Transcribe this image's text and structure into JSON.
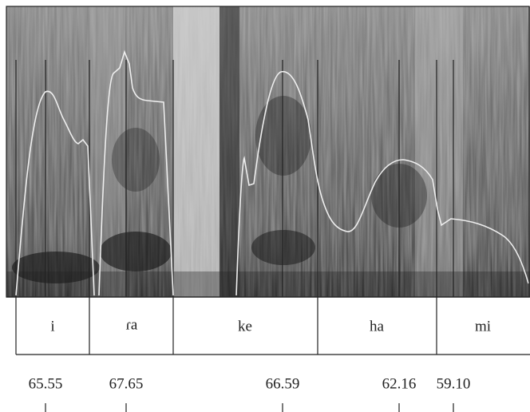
{
  "syllables": [
    "i",
    "ɾa",
    "ke",
    "ha",
    "mi"
  ],
  "pitch_values": [
    "65.55",
    "67.65",
    "66.59",
    "62.16",
    "59.10"
  ]
}
